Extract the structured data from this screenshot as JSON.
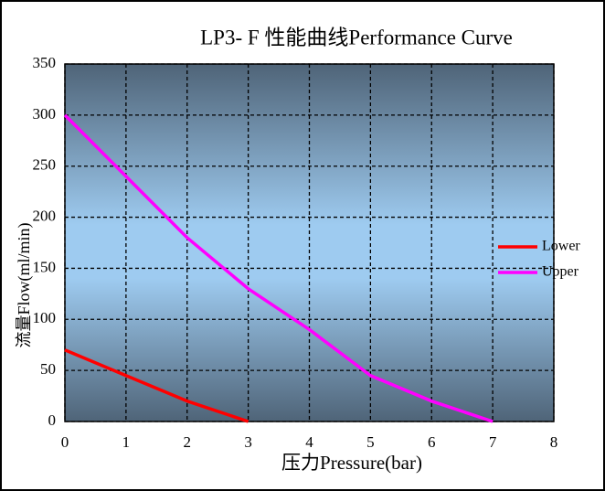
{
  "chart_data": {
    "type": "line",
    "title": "LP3- F 性能曲线Performance Curve",
    "x_label": "压力Pressure(bar)",
    "y_label": "流量Flow(ml/min)",
    "xlim": [
      0,
      8
    ],
    "xticks": [
      0,
      1,
      2,
      3,
      4,
      5,
      6,
      7,
      8
    ],
    "ylim": [
      0,
      350
    ],
    "yticks": [
      0,
      50,
      100,
      150,
      200,
      250,
      300,
      350
    ],
    "grid": true,
    "legend": "right",
    "series": [
      {
        "name": "Lower",
        "color": "#ff0000",
        "x": [
          0,
          1,
          2,
          3
        ],
        "values": [
          70,
          45,
          20,
          0
        ]
      },
      {
        "name": "Upper",
        "color": "#ff00ff",
        "x": [
          0,
          1,
          2,
          3,
          4,
          5,
          6,
          7
        ],
        "values": [
          300,
          240,
          180,
          130,
          90,
          45,
          20,
          0
        ]
      }
    ]
  }
}
